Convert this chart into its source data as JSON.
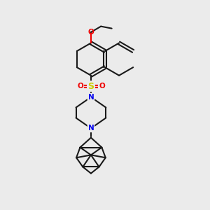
{
  "bg_color": "#ebebeb",
  "bond_color": "#1a1a1a",
  "N_color": "#0000ee",
  "O_color": "#ee0000",
  "S_color": "#cccc00",
  "lw": 1.5,
  "figsize": [
    3.0,
    3.0
  ],
  "dpi": 100,
  "xlim": [
    0,
    10
  ],
  "ylim": [
    0,
    10
  ]
}
